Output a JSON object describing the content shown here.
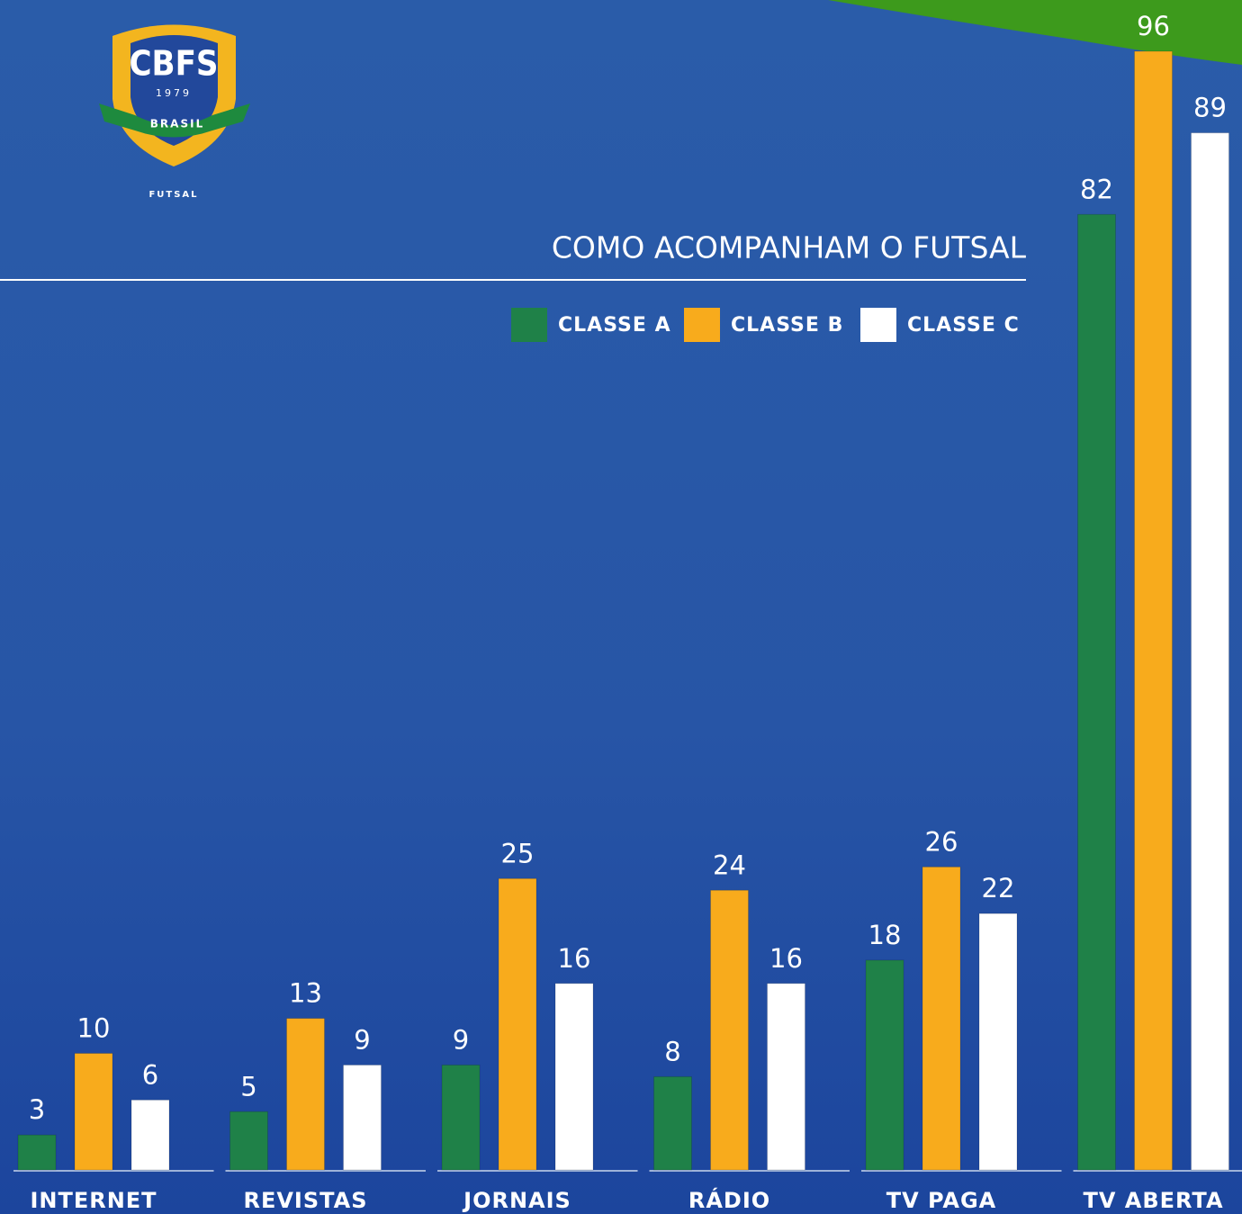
{
  "logo": {
    "name": "CBFS",
    "year": "1979",
    "country": "BRASIL",
    "sport": "FUTSAL"
  },
  "chart_data": {
    "type": "bar",
    "title": "COMO ACOMPANHAM O FUTSAL",
    "categories": [
      "INTERNET",
      "REVISTAS",
      "JORNAIS",
      "RÁDIO",
      "TV PAGA",
      "TV ABERTA"
    ],
    "series": [
      {
        "name": "CLASSE A",
        "color": "#1f8148",
        "values": [
          3,
          5,
          9,
          8,
          18,
          82
        ]
      },
      {
        "name": "CLASSE B",
        "color": "#f8ab1c",
        "values": [
          10,
          13,
          25,
          24,
          26,
          96
        ]
      },
      {
        "name": "CLASSE C",
        "color": "#ffffff",
        "values": [
          6,
          9,
          16,
          16,
          22,
          89
        ]
      }
    ]
  }
}
